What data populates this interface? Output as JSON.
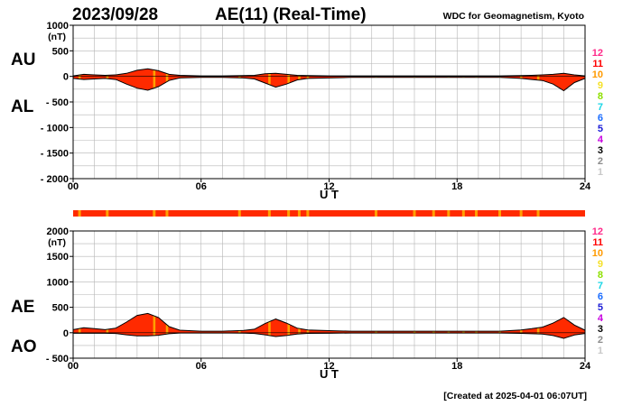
{
  "header": {
    "date": "2023/09/28",
    "title": "AE(11) (Real-Time)",
    "institution": "WDC for Geomagnetism, Kyoto"
  },
  "footer": {
    "created": "[Created at 2025-04-01 06:07UT]"
  },
  "legend": {
    "levels": [
      {
        "label": "12",
        "color": "#ff2a8a"
      },
      {
        "label": "11",
        "color": "#ff0000"
      },
      {
        "label": "10",
        "color": "#ff9a00"
      },
      {
        "label": "9",
        "color": "#f5e12a"
      },
      {
        "label": "8",
        "color": "#8ee000"
      },
      {
        "label": "7",
        "color": "#19d6e6"
      },
      {
        "label": "6",
        "color": "#1a6cff"
      },
      {
        "label": "5",
        "color": "#1b1bd6"
      },
      {
        "label": "4",
        "color": "#c800e0"
      },
      {
        "label": "3",
        "color": "#000000"
      },
      {
        "label": "2",
        "color": "#8c8c8c"
      },
      {
        "label": "1",
        "color": "#c8c8c8"
      }
    ]
  },
  "station_bar": {
    "base_color": "#ff2a00",
    "mark_color": "#ffa000",
    "mark_hours": [
      0.3,
      1.6,
      3.8,
      4.4,
      7.8,
      9.2,
      10.1,
      10.6,
      11.0,
      14.2,
      16.0,
      16.9,
      17.6,
      18.3,
      18.9,
      20.0,
      21.0,
      21.8
    ]
  },
  "chart_data": [
    {
      "type": "area",
      "panel": "top",
      "ylabel": "(nT)",
      "side_labels": [
        "AU",
        "AL"
      ],
      "xlabel": "U T",
      "xlim": [
        0,
        24
      ],
      "ylim": [
        -2000,
        1000
      ],
      "xticks": [
        0,
        6,
        12,
        18,
        24
      ],
      "xtick_labels": [
        "00",
        "06",
        "12",
        "18",
        "24"
      ],
      "yticks": [
        1000,
        500,
        0,
        -500,
        -1000,
        -1500,
        -2000
      ],
      "ytick_labels": [
        "1000",
        "500",
        "0",
        "- 500",
        "- 1000",
        "- 1500",
        "- 2000"
      ],
      "grid": true,
      "fill_color": "#ff2a00",
      "series": [
        {
          "name": "AU",
          "x": [
            0,
            0.5,
            1,
            1.5,
            2,
            2.5,
            3,
            3.5,
            4,
            4.5,
            5,
            6,
            7,
            8,
            8.5,
            9,
            9.5,
            10,
            10.5,
            11,
            12,
            13,
            14,
            15,
            16,
            17,
            18,
            19,
            20,
            21,
            21.5,
            22,
            22.5,
            23,
            23.5,
            24
          ],
          "values": [
            10,
            40,
            30,
            20,
            30,
            60,
            120,
            150,
            110,
            40,
            20,
            10,
            10,
            15,
            20,
            50,
            60,
            40,
            20,
            15,
            10,
            10,
            10,
            10,
            10,
            10,
            10,
            10,
            10,
            15,
            20,
            30,
            40,
            60,
            30,
            10
          ]
        },
        {
          "name": "AL",
          "x": [
            0,
            0.5,
            1,
            1.5,
            2,
            2.5,
            3,
            3.5,
            4,
            4.5,
            5,
            6,
            7,
            8,
            8.5,
            9,
            9.5,
            10,
            10.5,
            11,
            12,
            13,
            14,
            15,
            16,
            17,
            18,
            19,
            20,
            21,
            21.5,
            22,
            22.5,
            23,
            23.5,
            24
          ],
          "values": [
            -40,
            -60,
            -50,
            -40,
            -60,
            -150,
            -230,
            -270,
            -200,
            -80,
            -30,
            -20,
            -20,
            -30,
            -50,
            -130,
            -210,
            -150,
            -70,
            -40,
            -30,
            -20,
            -20,
            -20,
            -20,
            -20,
            -20,
            -20,
            -20,
            -40,
            -60,
            -80,
            -150,
            -280,
            -120,
            -40
          ]
        }
      ]
    },
    {
      "type": "area",
      "panel": "bottom",
      "ylabel": "(nT)",
      "side_labels": [
        "AE",
        "AO"
      ],
      "xlabel": "U T",
      "xlim": [
        0,
        24
      ],
      "ylim": [
        -500,
        2000
      ],
      "xticks": [
        0,
        6,
        12,
        18,
        24
      ],
      "xtick_labels": [
        "00",
        "06",
        "12",
        "18",
        "24"
      ],
      "yticks": [
        2000,
        1500,
        1000,
        500,
        0,
        -500
      ],
      "ytick_labels": [
        "2000",
        "1500",
        "1000",
        "500",
        "0",
        "- 500"
      ],
      "grid": true,
      "fill_color": "#ff2a00",
      "series": [
        {
          "name": "AE",
          "x": [
            0,
            0.5,
            1,
            1.5,
            2,
            2.5,
            3,
            3.5,
            4,
            4.5,
            5,
            6,
            7,
            8,
            8.5,
            9,
            9.5,
            10,
            10.5,
            11,
            12,
            13,
            14,
            15,
            16,
            17,
            18,
            19,
            20,
            21,
            21.5,
            22,
            22.5,
            23,
            23.5,
            24
          ],
          "values": [
            60,
            100,
            80,
            60,
            90,
            210,
            340,
            380,
            300,
            120,
            50,
            30,
            30,
            45,
            70,
            180,
            270,
            190,
            90,
            55,
            40,
            30,
            30,
            30,
            30,
            30,
            30,
            30,
            30,
            55,
            80,
            110,
            190,
            300,
            150,
            50
          ]
        },
        {
          "name": "AO",
          "x": [
            0,
            0.5,
            1,
            1.5,
            2,
            2.5,
            3,
            3.5,
            4,
            4.5,
            5,
            6,
            7,
            8,
            8.5,
            9,
            9.5,
            10,
            10.5,
            11,
            12,
            13,
            14,
            15,
            16,
            17,
            18,
            19,
            20,
            21,
            21.5,
            22,
            22.5,
            23,
            23.5,
            24
          ],
          "values": [
            -10,
            -10,
            -10,
            -10,
            -15,
            -40,
            -60,
            -60,
            -50,
            -20,
            -5,
            -5,
            -5,
            -8,
            -15,
            -40,
            -75,
            -55,
            -25,
            -12,
            -10,
            -5,
            -5,
            -5,
            -5,
            -5,
            -5,
            -5,
            -5,
            -12,
            -20,
            -25,
            -55,
            -110,
            -45,
            -15
          ]
        }
      ]
    }
  ]
}
